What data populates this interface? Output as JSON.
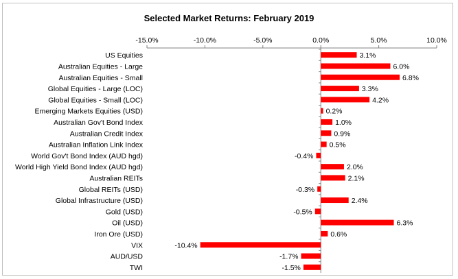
{
  "chart_data": {
    "type": "bar",
    "orientation": "horizontal",
    "title": "Selected Market Returns: February 2019",
    "xlabel": "",
    "ylabel": "",
    "xlim": [
      -15,
      10
    ],
    "xticks": [
      -15,
      -10,
      -5,
      0,
      5,
      10
    ],
    "xtick_labels": [
      "-15.0%",
      "-10.0%",
      "-5.0%",
      "0.0%",
      "5.0%",
      "10.0%"
    ],
    "x_axis_position": "top",
    "grid": false,
    "legend": "none",
    "bar_color": "#ff0000",
    "categories": [
      "US Equities",
      "Australian Equities - Large",
      "Australian Equities - Small",
      "Global Equities - Large (LOC)",
      "Global Equities - Small (LOC)",
      "Emerging Markets Equities (USD)",
      "Australian Gov't Bond Index",
      "Australian Credit Index",
      "Australian Inflation Link Index",
      "World Gov't Bond Index (AUD hgd)",
      "World High Yield Bond Index (AUD hgd)",
      "Australian REITs",
      "Global REITs (USD)",
      "Global Infrastructure (USD)",
      "Gold (USD)",
      "Oil (USD)",
      "Iron Ore (USD)",
      "VIX",
      "AUD/USD",
      "TWI"
    ],
    "values": [
      3.1,
      6.0,
      6.8,
      3.3,
      4.2,
      0.2,
      1.0,
      0.9,
      0.5,
      -0.4,
      2.0,
      2.1,
      -0.3,
      2.4,
      -0.5,
      6.3,
      0.6,
      -10.4,
      -1.7,
      -1.5
    ],
    "data_labels": [
      "3.1%",
      "6.0%",
      "6.8%",
      "3.3%",
      "4.2%",
      "0.2%",
      "1.0%",
      "0.9%",
      "0.5%",
      "-0.4%",
      "2.0%",
      "2.1%",
      "-0.3%",
      "2.4%",
      "-0.5%",
      "6.3%",
      "0.6%",
      "-10.4%",
      "-1.7%",
      "-1.5%"
    ]
  }
}
